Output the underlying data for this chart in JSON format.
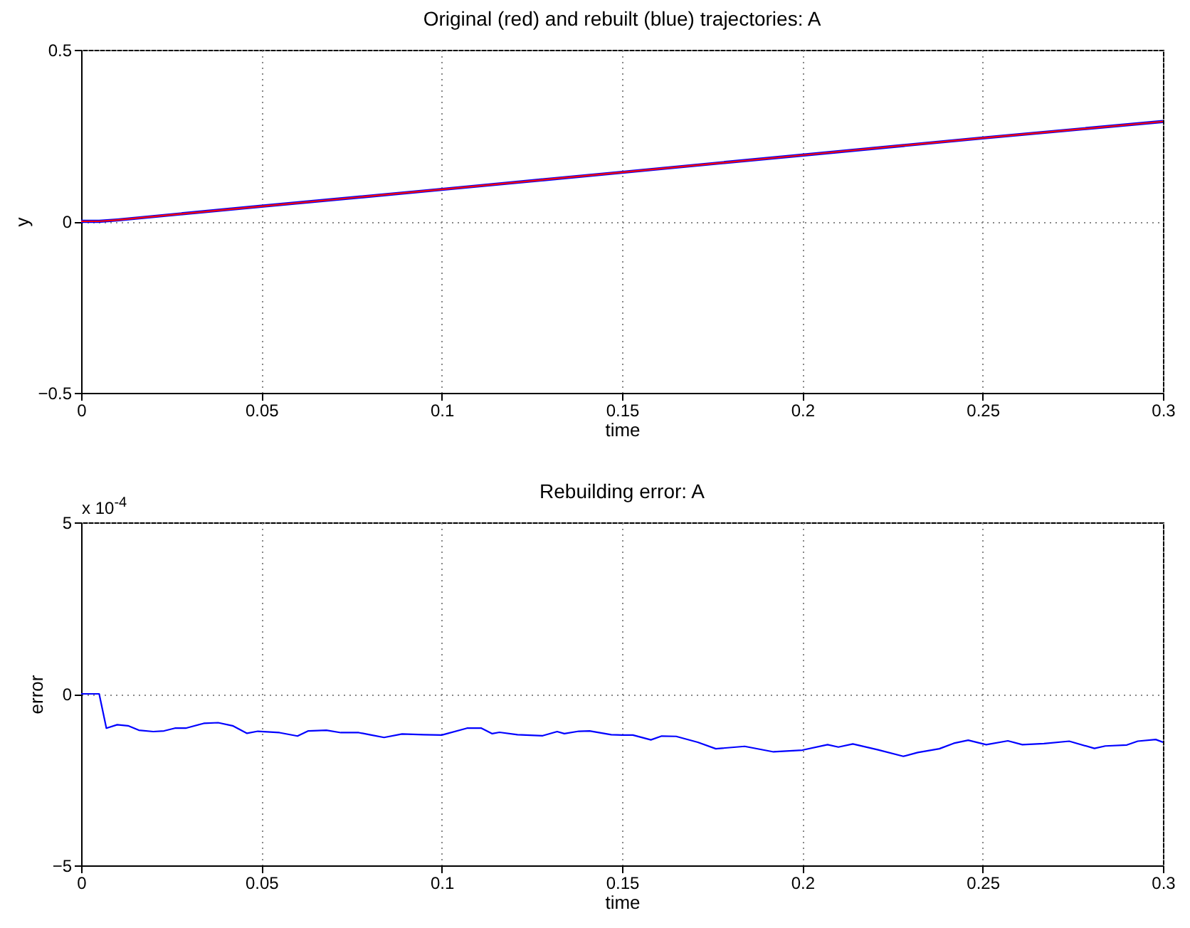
{
  "chart_data": [
    {
      "type": "line",
      "title": "Original (red) and rebuilt (blue) trajectories: A",
      "xlabel": "time",
      "ylabel": "y",
      "xlim": [
        0,
        0.3
      ],
      "xticks": [
        0,
        0.05,
        0.1,
        0.15,
        0.2,
        0.25,
        0.3
      ],
      "ylim": [
        -0.5,
        0.5
      ],
      "yticks": [
        -0.5,
        0,
        0.5
      ],
      "grid": true,
      "line_style": "solid",
      "series": [
        {
          "color": "#0000ff",
          "x": [
            0,
            0.005,
            0.01,
            0.05,
            0.1,
            0.15,
            0.2,
            0.25,
            0.3
          ],
          "values": [
            0,
            0,
            0.004,
            0.044,
            0.093,
            0.143,
            0.193,
            0.243,
            0.291
          ]
        },
        {
          "color": "#ff0000",
          "x": [
            0,
            0.005,
            0.01,
            0.05,
            0.1,
            0.15,
            0.2,
            0.25,
            0.3
          ],
          "values": [
            0,
            0,
            0.004,
            0.044,
            0.093,
            0.143,
            0.193,
            0.243,
            0.291
          ]
        }
      ]
    },
    {
      "type": "line",
      "title": "Rebuilding error: A",
      "xlabel": "time",
      "ylabel": "error",
      "xlim": [
        0,
        0.3
      ],
      "xticks": [
        0,
        0.05,
        0.1,
        0.15,
        0.2,
        0.25,
        0.3
      ],
      "ylim": [
        -5,
        5
      ],
      "yticks": [
        -5,
        0,
        5
      ],
      "grid": true,
      "line_style": "solid",
      "annotations": [
        "x 10$^{-4}$"
      ],
      "series": [
        {
          "color": "#0000ff",
          "x": [
            0,
            0.005,
            0.007,
            0.01,
            0.013,
            0.016,
            0.02,
            0.023,
            0.026,
            0.029,
            0.034,
            0.038,
            0.042,
            0.046,
            0.049,
            0.055,
            0.06,
            0.063,
            0.068,
            0.072,
            0.077,
            0.08,
            0.084,
            0.089,
            0.095,
            0.1,
            0.107,
            0.111,
            0.114,
            0.116,
            0.121,
            0.128,
            0.132,
            0.134,
            0.138,
            0.141,
            0.147,
            0.15,
            0.153,
            0.158,
            0.161,
            0.165,
            0.171,
            0.176,
            0.184,
            0.192,
            0.2,
            0.207,
            0.21,
            0.214,
            0.221,
            0.228,
            0.232,
            0.238,
            0.242,
            0.246,
            0.251,
            0.257,
            0.261,
            0.267,
            0.274,
            0.281,
            0.284,
            0.29,
            0.293,
            0.298,
            0.3
          ],
          "values": [
            0,
            0,
            -1.0,
            -0.9,
            -0.93,
            -1.06,
            -1.1,
            -1.08,
            -1.0,
            -1.0,
            -0.86,
            -0.84,
            -0.93,
            -1.15,
            -1.09,
            -1.13,
            -1.23,
            -1.08,
            -1.06,
            -1.13,
            -1.13,
            -1.19,
            -1.27,
            -1.17,
            -1.19,
            -1.2,
            -1.0,
            -1.0,
            -1.16,
            -1.12,
            -1.19,
            -1.22,
            -1.1,
            -1.16,
            -1.09,
            -1.08,
            -1.19,
            -1.2,
            -1.2,
            -1.34,
            -1.23,
            -1.24,
            -1.41,
            -1.6,
            -1.53,
            -1.69,
            -1.64,
            -1.48,
            -1.55,
            -1.46,
            -1.63,
            -1.82,
            -1.71,
            -1.6,
            -1.44,
            -1.35,
            -1.48,
            -1.37,
            -1.48,
            -1.45,
            -1.38,
            -1.59,
            -1.52,
            -1.49,
            -1.38,
            -1.33,
            -1.41
          ]
        }
      ]
    }
  ]
}
